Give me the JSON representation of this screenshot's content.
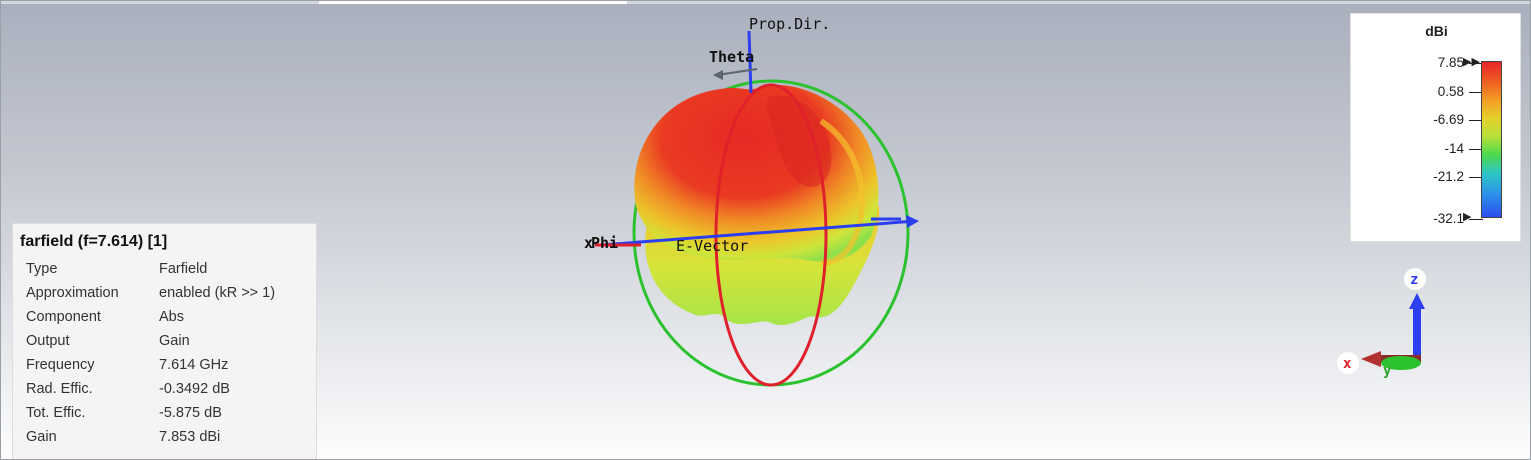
{
  "scene": {
    "labels": {
      "prop_dir": "Prop.Dir.",
      "theta": "Theta",
      "phi": "Phi",
      "x_axis": "x",
      "e_vector": "E-Vector"
    }
  },
  "info_panel": {
    "title": "farfield (f=7.614) [1]",
    "rows": [
      {
        "key": "Type",
        "value": "Farfield"
      },
      {
        "key": "Approximation",
        "value": "enabled (kR >> 1)"
      },
      {
        "key": "Component",
        "value": "Abs"
      },
      {
        "key": "Output",
        "value": "Gain"
      },
      {
        "key": "Frequency",
        "value": "7.614 GHz"
      },
      {
        "key": "Rad. Effic.",
        "value": "-0.3492 dB"
      },
      {
        "key": "Tot. Effic.",
        "value": "-5.875 dB"
      },
      {
        "key": "Gain",
        "value": "7.853 dBi"
      }
    ]
  },
  "legend": {
    "unit": "dBi",
    "ticks": [
      "7.85",
      "0.58",
      "-6.69",
      "-14",
      "-21.2",
      "-32.1"
    ]
  },
  "axes_triad": {
    "z": "z",
    "x": "x",
    "y": "y"
  },
  "colors": {
    "pattern_max": "#e8262b",
    "pattern_mid": "#f0a22a",
    "pattern_low": "#c8e03a",
    "circle_red": "#e0202a",
    "circle_green": "#2cc22f",
    "axis_blue": "#2c3ff0"
  }
}
